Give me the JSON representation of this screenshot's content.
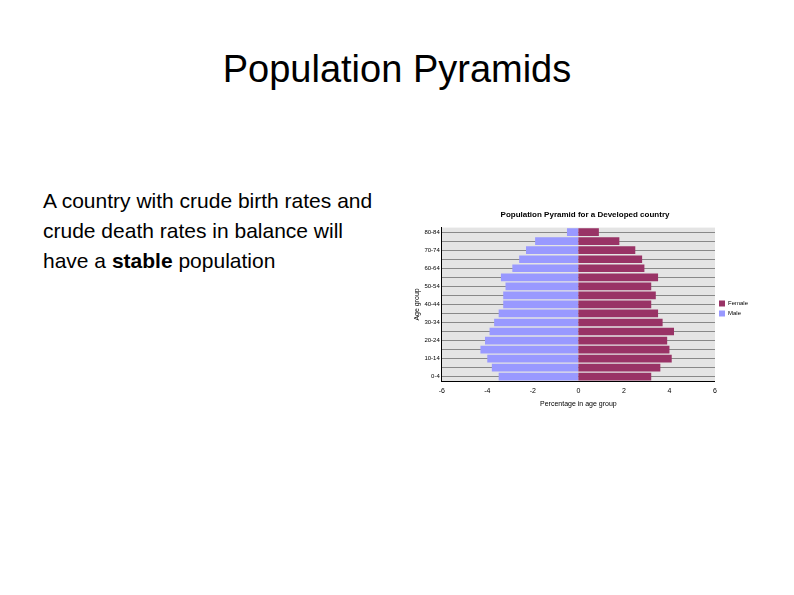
{
  "slide": {
    "title": "Population Pyramids",
    "body": [
      {
        "text": "A country with crude birth rates and crude death rates in balance will have a ",
        "bold": false
      },
      {
        "text": "stable",
        "bold": true
      },
      {
        "text": " population",
        "bold": false
      }
    ]
  },
  "chart_data": {
    "type": "bar",
    "title": "Population Pyramid for a Developed country",
    "orientation": "horizontal",
    "stacked": true,
    "x_label": "Percentage in age group",
    "y_label": "Age group",
    "categories": [
      "0-4",
      null,
      "10-14",
      null,
      "20-24",
      null,
      "30-34",
      null,
      "40-44",
      null,
      "50-54",
      null,
      "60-64",
      null,
      "70-74",
      null,
      "80-84"
    ],
    "series": [
      {
        "name": "Female",
        "color": "#993366",
        "values": [
          3.2,
          3.6,
          4.1,
          4.0,
          3.9,
          4.2,
          3.7,
          3.5,
          3.2,
          3.4,
          3.2,
          3.5,
          2.9,
          2.8,
          2.5,
          1.8,
          0.9
        ]
      },
      {
        "name": "Male",
        "color": "#9999ff",
        "values": [
          -3.5,
          -3.8,
          -4.0,
          -4.3,
          -4.1,
          -3.9,
          -3.7,
          -3.5,
          -3.3,
          -3.3,
          -3.2,
          -3.4,
          -2.9,
          -2.6,
          -2.3,
          -1.9,
          -0.5
        ]
      }
    ],
    "xlim": [
      -6,
      6
    ],
    "xticks": [
      -6,
      -4,
      -2,
      0,
      2,
      4,
      6
    ],
    "grid": true,
    "legend": "right"
  }
}
